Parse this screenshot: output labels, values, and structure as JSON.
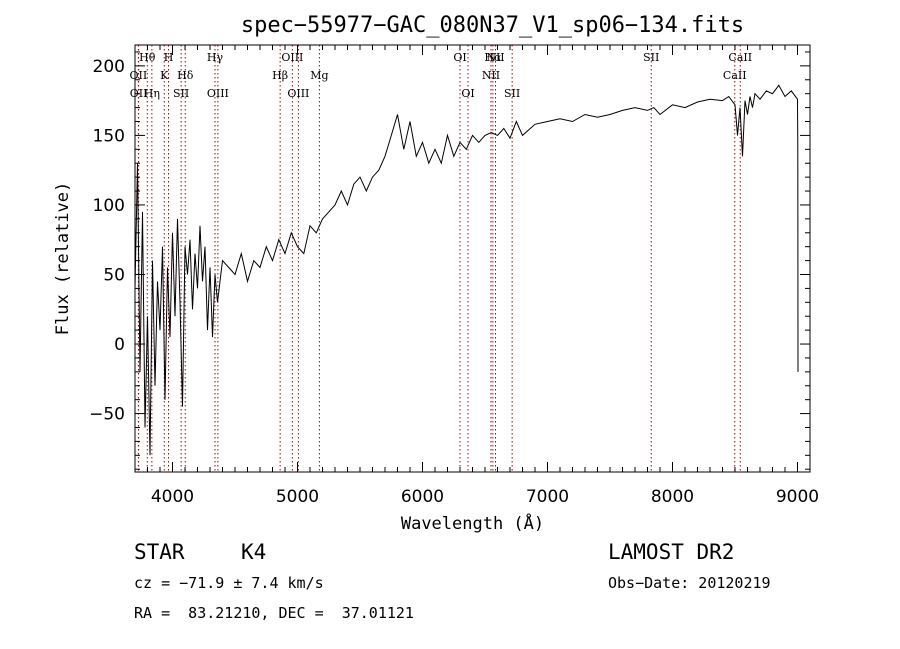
{
  "chart_data": {
    "type": "line",
    "title": "spec−55977−GAC_080N37_V1_sp06−134.fits",
    "xlabel": "Wavelength (Å)",
    "ylabel": "Flux (relative)",
    "xlim": [
      3700,
      9100
    ],
    "ylim": [
      -92,
      215
    ],
    "x_ticks": [
      4000,
      5000,
      6000,
      7000,
      8000,
      9000
    ],
    "x_tick_labels": [
      "4000",
      "5000",
      "6000",
      "7000",
      "8000",
      "9000"
    ],
    "y_ticks": [
      -50,
      0,
      50,
      100,
      150,
      200
    ],
    "y_tick_labels": [
      "−50",
      "0",
      "50",
      "100",
      "150",
      "200"
    ],
    "spectrum": {
      "x": [
        3700,
        3720,
        3740,
        3760,
        3780,
        3800,
        3820,
        3840,
        3860,
        3880,
        3900,
        3920,
        3940,
        3960,
        3980,
        4000,
        4020,
        4040,
        4060,
        4080,
        4100,
        4120,
        4140,
        4160,
        4180,
        4200,
        4220,
        4240,
        4260,
        4280,
        4300,
        4320,
        4340,
        4360,
        4380,
        4400,
        4450,
        4500,
        4550,
        4600,
        4650,
        4700,
        4750,
        4800,
        4850,
        4900,
        4950,
        5000,
        5050,
        5100,
        5150,
        5200,
        5250,
        5300,
        5350,
        5400,
        5450,
        5500,
        5550,
        5600,
        5650,
        5700,
        5750,
        5800,
        5850,
        5900,
        5950,
        6000,
        6050,
        6100,
        6150,
        6200,
        6250,
        6300,
        6350,
        6400,
        6450,
        6500,
        6550,
        6600,
        6650,
        6700,
        6750,
        6800,
        6900,
        7000,
        7100,
        7200,
        7300,
        7400,
        7500,
        7600,
        7700,
        7800,
        7850,
        7900,
        8000,
        8100,
        8200,
        8300,
        8400,
        8450,
        8500,
        8520,
        8540,
        8560,
        8580,
        8600,
        8620,
        8640,
        8660,
        8700,
        8750,
        8800,
        8850,
        8900,
        8950,
        9000,
        9002,
        9004
      ],
      "y": [
        40,
        130,
        -20,
        95,
        -60,
        20,
        -80,
        60,
        -30,
        45,
        10,
        70,
        -40,
        55,
        5,
        80,
        20,
        90,
        30,
        -45,
        70,
        50,
        75,
        25,
        65,
        40,
        85,
        45,
        70,
        10,
        55,
        5,
        50,
        30,
        45,
        60,
        55,
        50,
        65,
        45,
        60,
        55,
        70,
        60,
        75,
        65,
        80,
        70,
        65,
        85,
        80,
        90,
        95,
        100,
        110,
        100,
        115,
        120,
        110,
        120,
        125,
        135,
        150,
        165,
        140,
        160,
        135,
        145,
        130,
        140,
        130,
        150,
        135,
        145,
        140,
        150,
        145,
        150,
        152,
        150,
        155,
        148,
        160,
        150,
        158,
        160,
        162,
        160,
        165,
        163,
        165,
        168,
        170,
        168,
        170,
        165,
        172,
        170,
        174,
        176,
        175,
        178,
        172,
        150,
        170,
        135,
        175,
        165,
        178,
        170,
        180,
        176,
        182,
        180,
        186,
        178,
        182,
        176,
        140,
        -20
      ]
    },
    "reference_lines": [
      {
        "label": "Hθ",
        "x": 3798
      },
      {
        "label": "OII",
        "x": 3727
      },
      {
        "label": "OII",
        "x": 3729
      },
      {
        "label": "Hη",
        "x": 3835
      },
      {
        "label": "H",
        "x": 3968
      },
      {
        "label": "K",
        "x": 3934
      },
      {
        "label": "Hδ",
        "x": 4102
      },
      {
        "label": "SII",
        "x": 4069
      },
      {
        "label": "Hγ",
        "x": 4340
      },
      {
        "label": "OIII",
        "x": 4363
      },
      {
        "label": "Hβ",
        "x": 4861
      },
      {
        "label": "OIII",
        "x": 4959
      },
      {
        "label": "OIII",
        "x": 5007
      },
      {
        "label": "Mg",
        "x": 5175
      },
      {
        "label": "OI",
        "x": 6300
      },
      {
        "label": "OI",
        "x": 6364
      },
      {
        "label": "Hα",
        "x": 6563
      },
      {
        "label": "NII",
        "x": 6548
      },
      {
        "label": "NII",
        "x": 6584
      },
      {
        "label": "SII",
        "x": 6717
      },
      {
        "label": "SII",
        "x": 7830
      },
      {
        "label": "CaII",
        "x": 8542
      },
      {
        "label": "CaII",
        "x": 8498
      }
    ]
  },
  "info": {
    "class_label": "STAR",
    "subclass": "K4",
    "survey": "LAMOST DR2",
    "redshift_line": "cz = −71.9 ± 7.4 km/s",
    "obs_date": "Obs−Date: 20120219",
    "coords": "RA =  83.21210, DEC =  37.01121"
  }
}
